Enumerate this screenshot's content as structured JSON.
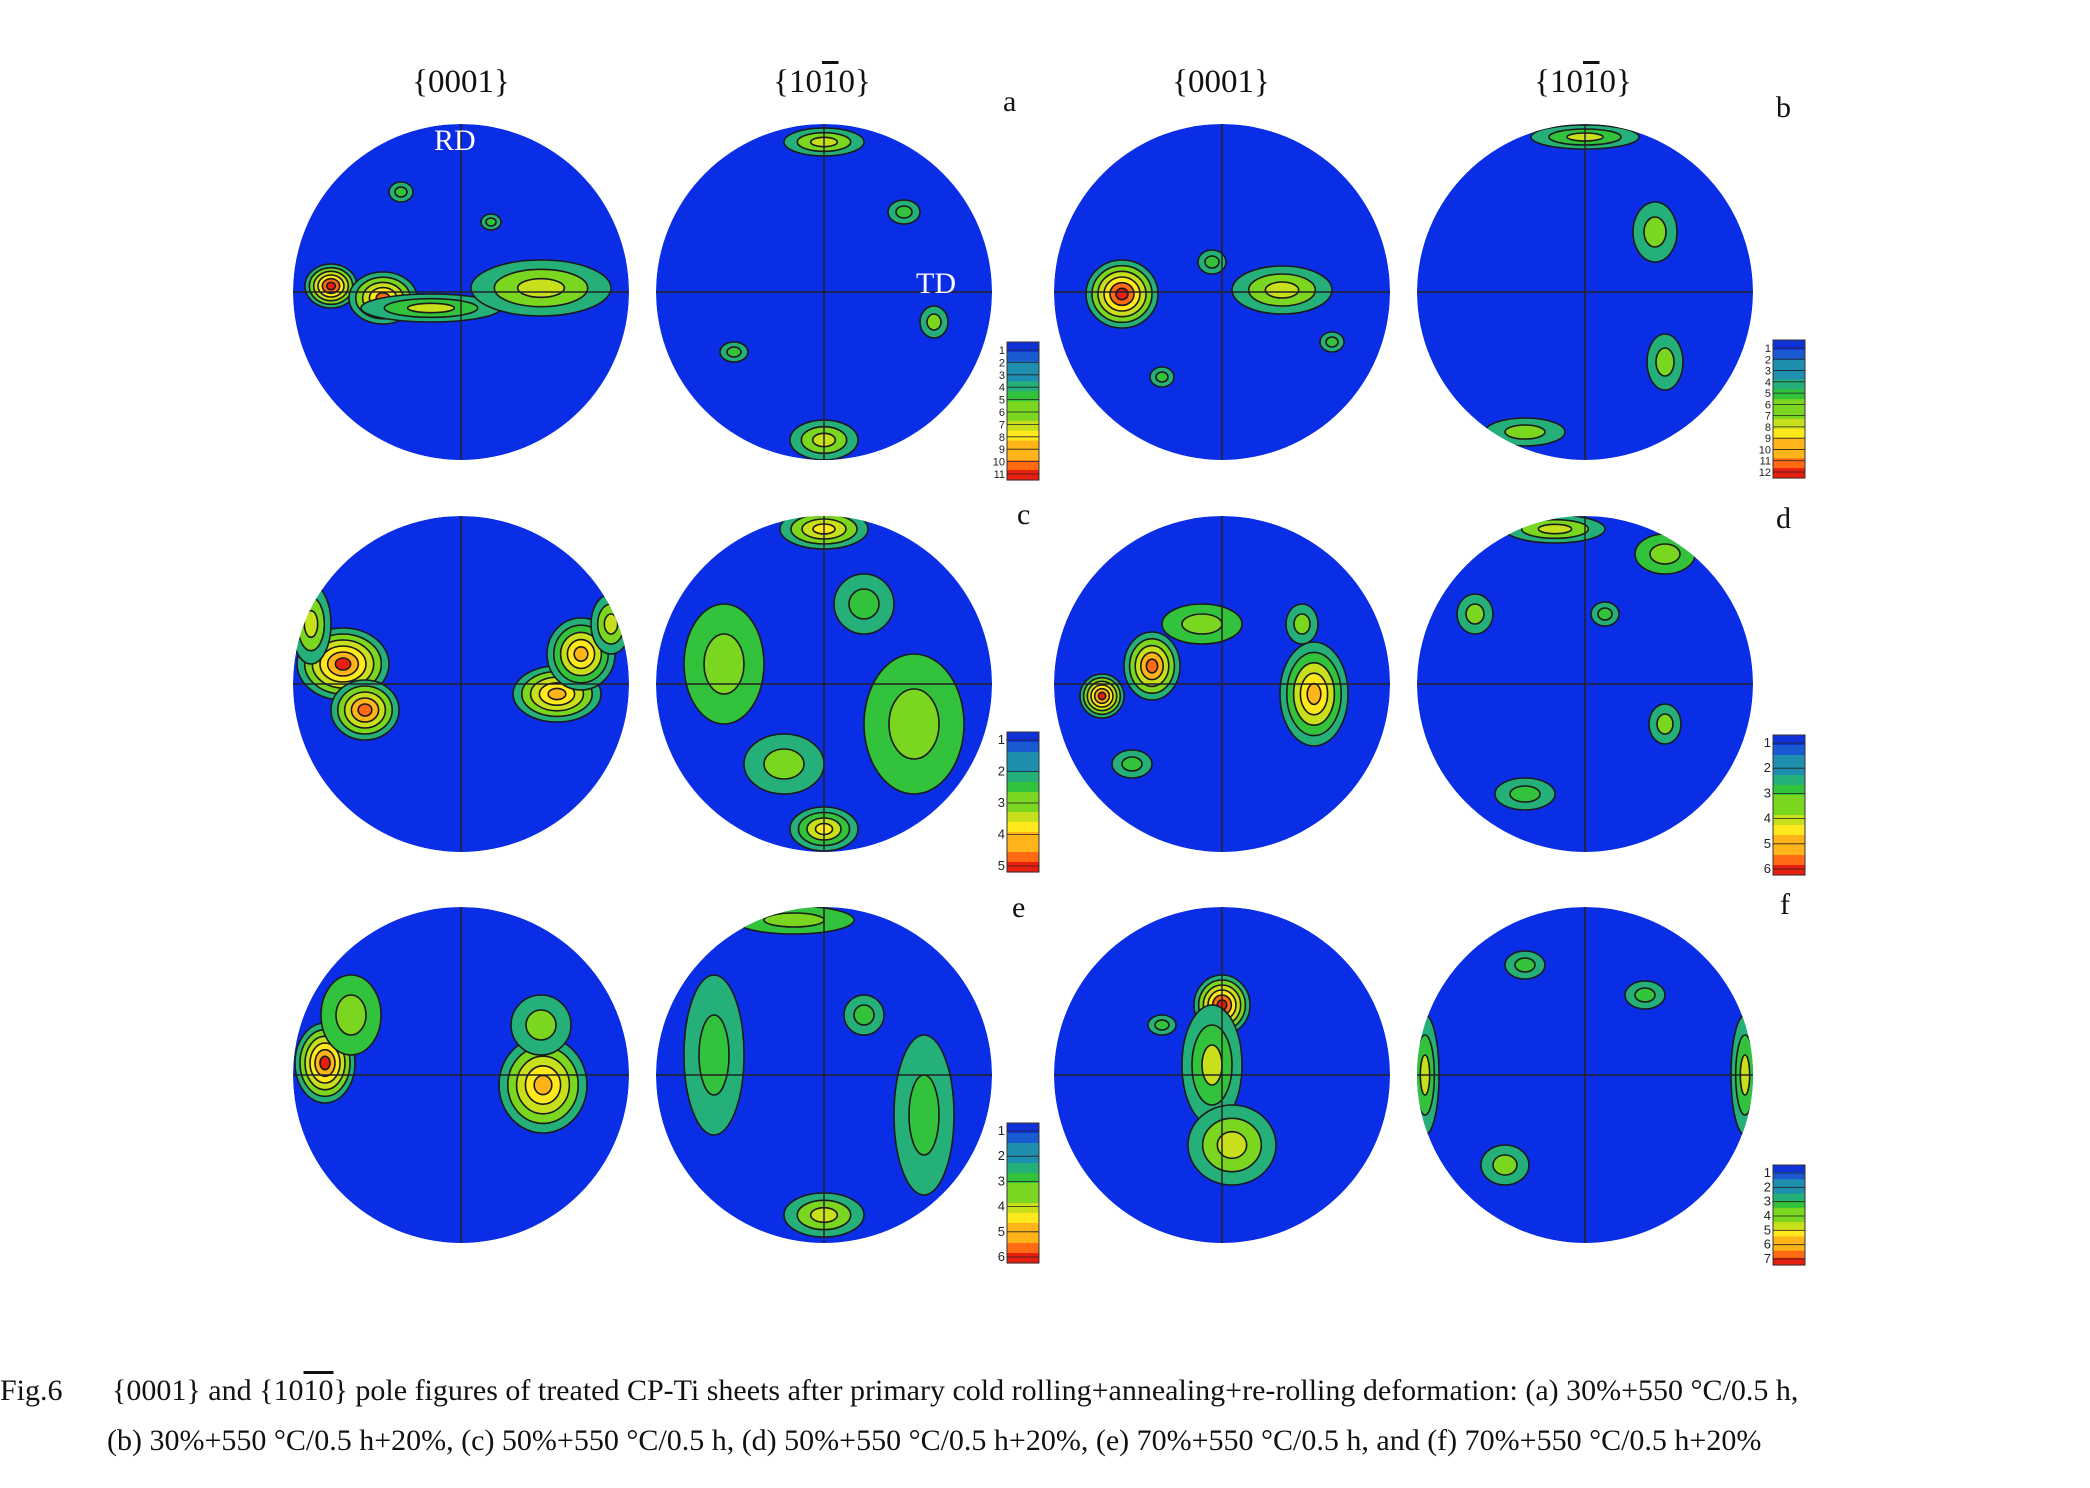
{
  "column_headers": [
    "{0001}",
    "{10",
    "1",
    "0}"
  ],
  "column_headers_note": "",
  "headers": {
    "basal": "{0001}",
    "prism_pre": "{10",
    "prism_bar": "1",
    "prism_post": "0}"
  },
  "axis_labels": {
    "rd": "RD",
    "td": "TD"
  },
  "panels": [
    {
      "letter": "a",
      "scale_labels": [
        "1",
        "2",
        "3",
        "4",
        "5",
        "6",
        "7",
        "8",
        "9",
        "10",
        "11"
      ]
    },
    {
      "letter": "b",
      "scale_labels": [
        "1",
        "2",
        "3",
        "4",
        "5",
        "6",
        "7",
        "8",
        "9",
        "10",
        "11",
        "12"
      ]
    },
    {
      "letter": "c",
      "scale_labels": [
        "1",
        "2",
        "3",
        "4",
        "5"
      ]
    },
    {
      "letter": "d",
      "scale_labels": [
        "1",
        "2",
        "3",
        "4",
        "5",
        "6"
      ]
    },
    {
      "letter": "e",
      "scale_labels": [
        "1",
        "2",
        "3",
        "4",
        "5",
        "6"
      ]
    },
    {
      "letter": "f",
      "scale_labels": [
        "1",
        "2",
        "3",
        "4",
        "5",
        "6",
        "7"
      ]
    }
  ],
  "colors": {
    "pole_background": "#0a2ee6",
    "contour": "#1a1a1a",
    "scale": [
      "#1030d8",
      "#1a5ad0",
      "#1f8fb0",
      "#25b07a",
      "#33c23c",
      "#7ad61e",
      "#c8e01c",
      "#ffe81c",
      "#ffb41a",
      "#ff6a12",
      "#e81e0e"
    ]
  },
  "caption": {
    "label": "Fig.6",
    "line1_a": "{0001} and {10",
    "line1_bar1": "1",
    "line1_bar2": "0",
    "line1_b": "} pole figures of treated CP-Ti sheets after primary cold rolling+annealing+re-rolling deformation: (a) 30%+550 °C/0.5 h,",
    "line2": "(b) 30%+550 °C/0.5 h+20%, (c) 50%+550 °C/0.5 h, (d) 50%+550 °C/0.5 h+20%, (e) 70%+550 °C/0.5 h, and (f) 70%+550 °C/0.5 h+20%"
  }
}
